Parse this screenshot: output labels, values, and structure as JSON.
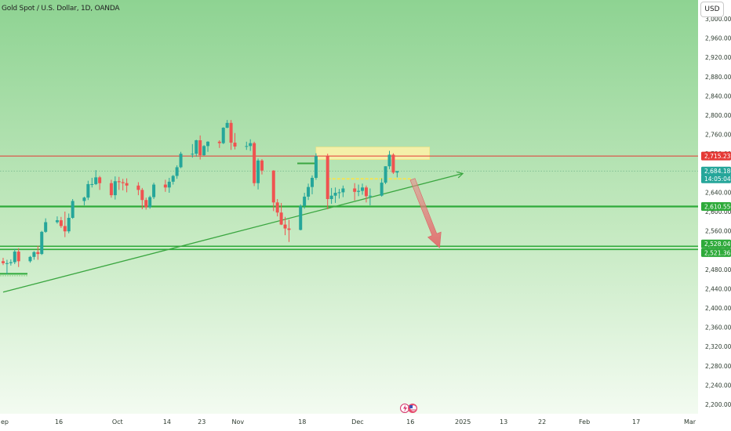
{
  "header": {
    "title": "Gold Spot / U.S. Dollar, 1D, OANDA",
    "currency_button": "USD"
  },
  "colors": {
    "up": "#26a69a",
    "down": "#ef5350",
    "resistance_line": "#e53935",
    "support_line": "#2eaa3a",
    "trendline": "#3aa640",
    "highlight_zone": "#fff2a8",
    "arrow": "#e07070"
  },
  "chart_data": {
    "type": "candlestick",
    "title": "Gold Spot / U.S. Dollar, 1D, OANDA",
    "y_axis": {
      "unit": "USD",
      "range": [
        2180,
        3010
      ],
      "ticks": [
        "3,000.000",
        "2,960.000",
        "2,920.000",
        "2,880.000",
        "2,840.000",
        "2,800.000",
        "2,760.000",
        "2,720.000",
        "2,680.000",
        "2,640.000",
        "2,600.000",
        "2,560.000",
        "2,520.000",
        "2,480.000",
        "2,440.000",
        "2,400.000",
        "2,360.000",
        "2,320.000",
        "2,280.000",
        "2,240.000",
        "2,200.000"
      ]
    },
    "x_axis": {
      "labels": [
        "ep",
        "16",
        "Oct",
        "14",
        "23",
        "Nov",
        "18",
        "Dec",
        "16",
        "2025",
        "13",
        "22",
        "Feb",
        "17",
        "Mar"
      ]
    },
    "price_tags": [
      {
        "label": "2,715.233",
        "value": 2715.233,
        "color": "#e53935"
      },
      {
        "label": "2,684.180",
        "value": 2684.18,
        "color": "#26a69a"
      },
      {
        "label": "14:05:04",
        "value": 2674.5,
        "color": "#26a69a"
      },
      {
        "label": "2,610.550",
        "value": 2610.55,
        "color": "#2eaa3a"
      },
      {
        "label": "2,528.049",
        "value": 2528.049,
        "color": "#2eaa3a"
      },
      {
        "label": "2,521.367",
        "value": 2521.367,
        "color": "#2eaa3a"
      }
    ],
    "horizontal_lines": [
      {
        "name": "resistance",
        "value": 2715.233
      },
      {
        "name": "support",
        "value": 2610.55
      },
      {
        "name": "support-zone-top",
        "value": 2528.049
      },
      {
        "name": "support-zone-bottom",
        "value": 2521.367
      }
    ],
    "trendline": {
      "from": {
        "date": "Sep 02",
        "price": 2433
      },
      "to": {
        "date": "Dec 30",
        "price": 2679
      }
    },
    "highlight_zones": [
      {
        "from_date": "Nov 22",
        "to_date": "Dec 21",
        "low": 2708,
        "high": 2734
      }
    ],
    "forecast_arrow": {
      "from": {
        "date": "Dec 17",
        "price": 2667
      },
      "to": {
        "date": "Dec 24",
        "price": 2525
      }
    },
    "candles": [
      {
        "d": "Sep 02",
        "o": 2497,
        "h": 2504,
        "l": 2489,
        "c": 2493
      },
      {
        "d": "Sep 03",
        "o": 2493,
        "h": 2500,
        "l": 2470,
        "c": 2493
      },
      {
        "d": "Sep 04",
        "o": 2493,
        "h": 2501,
        "l": 2488,
        "c": 2495
      },
      {
        "d": "Sep 05",
        "o": 2495,
        "h": 2523,
        "l": 2491,
        "c": 2517
      },
      {
        "d": "Sep 06",
        "o": 2517,
        "h": 2524,
        "l": 2485,
        "c": 2497
      },
      {
        "d": "Sep 09",
        "o": 2497,
        "h": 2508,
        "l": 2494,
        "c": 2506
      },
      {
        "d": "Sep 10",
        "o": 2506,
        "h": 2518,
        "l": 2500,
        "c": 2516
      },
      {
        "d": "Sep 11",
        "o": 2516,
        "h": 2529,
        "l": 2500,
        "c": 2512
      },
      {
        "d": "Sep 12",
        "o": 2512,
        "h": 2560,
        "l": 2510,
        "c": 2558
      },
      {
        "d": "Sep 13",
        "o": 2558,
        "h": 2586,
        "l": 2556,
        "c": 2578
      },
      {
        "d": "Sep 16",
        "o": 2578,
        "h": 2590,
        "l": 2575,
        "c": 2582
      },
      {
        "d": "Sep 17",
        "o": 2582,
        "h": 2589,
        "l": 2566,
        "c": 2570
      },
      {
        "d": "Sep 18",
        "o": 2570,
        "h": 2600,
        "l": 2547,
        "c": 2559
      },
      {
        "d": "Sep 19",
        "o": 2559,
        "h": 2596,
        "l": 2555,
        "c": 2587
      },
      {
        "d": "Sep 20",
        "o": 2587,
        "h": 2626,
        "l": 2585,
        "c": 2622
      },
      {
        "d": "Sep 23",
        "o": 2622,
        "h": 2631,
        "l": 2613,
        "c": 2629
      },
      {
        "d": "Sep 24",
        "o": 2629,
        "h": 2664,
        "l": 2624,
        "c": 2657
      },
      {
        "d": "Sep 25",
        "o": 2657,
        "h": 2670,
        "l": 2650,
        "c": 2657
      },
      {
        "d": "Sep 26",
        "o": 2657,
        "h": 2686,
        "l": 2655,
        "c": 2671
      },
      {
        "d": "Sep 27",
        "o": 2671,
        "h": 2674,
        "l": 2645,
        "c": 2659
      },
      {
        "d": "Sep 30",
        "o": 2659,
        "h": 2666,
        "l": 2629,
        "c": 2634
      },
      {
        "d": "Oct 01",
        "o": 2634,
        "h": 2673,
        "l": 2625,
        "c": 2663
      },
      {
        "d": "Oct 02",
        "o": 2663,
        "h": 2672,
        "l": 2645,
        "c": 2661
      },
      {
        "d": "Oct 03",
        "o": 2661,
        "h": 2668,
        "l": 2644,
        "c": 2659
      },
      {
        "d": "Oct 04",
        "o": 2659,
        "h": 2669,
        "l": 2640,
        "c": 2654
      },
      {
        "d": "Oct 07",
        "o": 2654,
        "h": 2661,
        "l": 2634,
        "c": 2645
      },
      {
        "d": "Oct 08",
        "o": 2645,
        "h": 2649,
        "l": 2605,
        "c": 2624
      },
      {
        "d": "Oct 09",
        "o": 2624,
        "h": 2629,
        "l": 2604,
        "c": 2609
      },
      {
        "d": "Oct 10",
        "o": 2609,
        "h": 2633,
        "l": 2606,
        "c": 2630
      },
      {
        "d": "Oct 11",
        "o": 2630,
        "h": 2660,
        "l": 2626,
        "c": 2656
      },
      {
        "d": "Oct 14",
        "o": 2656,
        "h": 2666,
        "l": 2641,
        "c": 2650
      },
      {
        "d": "Oct 15",
        "o": 2650,
        "h": 2670,
        "l": 2639,
        "c": 2662
      },
      {
        "d": "Oct 16",
        "o": 2662,
        "h": 2676,
        "l": 2656,
        "c": 2674
      },
      {
        "d": "Oct 17",
        "o": 2674,
        "h": 2696,
        "l": 2668,
        "c": 2692
      },
      {
        "d": "Oct 18",
        "o": 2692,
        "h": 2724,
        "l": 2690,
        "c": 2720
      },
      {
        "d": "Oct 21",
        "o": 2720,
        "h": 2740,
        "l": 2712,
        "c": 2720
      },
      {
        "d": "Oct 22",
        "o": 2720,
        "h": 2749,
        "l": 2714,
        "c": 2748
      },
      {
        "d": "Oct 23",
        "o": 2748,
        "h": 2758,
        "l": 2708,
        "c": 2717
      },
      {
        "d": "Oct 24",
        "o": 2717,
        "h": 2738,
        "l": 2716,
        "c": 2736
      },
      {
        "d": "Oct 25",
        "o": 2736,
        "h": 2746,
        "l": 2724,
        "c": 2745
      },
      {
        "d": "Oct 28",
        "o": 2745,
        "h": 2748,
        "l": 2732,
        "c": 2742
      },
      {
        "d": "Oct 29",
        "o": 2742,
        "h": 2775,
        "l": 2740,
        "c": 2774
      },
      {
        "d": "Oct 30",
        "o": 2774,
        "h": 2790,
        "l": 2773,
        "c": 2784
      },
      {
        "d": "Oct 31",
        "o": 2784,
        "h": 2790,
        "l": 2728,
        "c": 2743
      },
      {
        "d": "Nov 01",
        "o": 2743,
        "h": 2763,
        "l": 2729,
        "c": 2735
      },
      {
        "d": "Nov 04",
        "o": 2735,
        "h": 2745,
        "l": 2728,
        "c": 2736
      },
      {
        "d": "Nov 05",
        "o": 2736,
        "h": 2750,
        "l": 2726,
        "c": 2742
      },
      {
        "d": "Nov 06",
        "o": 2742,
        "h": 2745,
        "l": 2653,
        "c": 2659
      },
      {
        "d": "Nov 07",
        "o": 2659,
        "h": 2710,
        "l": 2646,
        "c": 2706
      },
      {
        "d": "Nov 08",
        "o": 2706,
        "h": 2709,
        "l": 2677,
        "c": 2685
      },
      {
        "d": "Nov 11",
        "o": 2685,
        "h": 2686,
        "l": 2601,
        "c": 2619
      },
      {
        "d": "Nov 12",
        "o": 2619,
        "h": 2626,
        "l": 2590,
        "c": 2598
      },
      {
        "d": "Nov 13",
        "o": 2598,
        "h": 2618,
        "l": 2572,
        "c": 2573
      },
      {
        "d": "Nov 14",
        "o": 2573,
        "h": 2589,
        "l": 2551,
        "c": 2565
      },
      {
        "d": "Nov 15",
        "o": 2565,
        "h": 2583,
        "l": 2537,
        "c": 2562
      },
      {
        "d": "Nov 18",
        "o": 2562,
        "h": 2615,
        "l": 2561,
        "c": 2612
      },
      {
        "d": "Nov 19",
        "o": 2612,
        "h": 2639,
        "l": 2606,
        "c": 2631
      },
      {
        "d": "Nov 20",
        "o": 2631,
        "h": 2658,
        "l": 2624,
        "c": 2651
      },
      {
        "d": "Nov 21",
        "o": 2651,
        "h": 2675,
        "l": 2636,
        "c": 2670
      },
      {
        "d": "Nov 22",
        "o": 2670,
        "h": 2721,
        "l": 2666,
        "c": 2715
      },
      {
        "d": "Nov 25",
        "o": 2715,
        "h": 2720,
        "l": 2605,
        "c": 2626
      },
      {
        "d": "Nov 26",
        "o": 2626,
        "h": 2649,
        "l": 2616,
        "c": 2633
      },
      {
        "d": "Nov 27",
        "o": 2633,
        "h": 2650,
        "l": 2618,
        "c": 2639
      },
      {
        "d": "Nov 28",
        "o": 2639,
        "h": 2647,
        "l": 2627,
        "c": 2640
      },
      {
        "d": "Nov 29",
        "o": 2640,
        "h": 2654,
        "l": 2630,
        "c": 2648
      },
      {
        "d": "Dec 02",
        "o": 2648,
        "h": 2659,
        "l": 2623,
        "c": 2641
      },
      {
        "d": "Dec 03",
        "o": 2641,
        "h": 2656,
        "l": 2632,
        "c": 2643
      },
      {
        "d": "Dec 04",
        "o": 2643,
        "h": 2658,
        "l": 2635,
        "c": 2650
      },
      {
        "d": "Dec 05",
        "o": 2650,
        "h": 2654,
        "l": 2619,
        "c": 2632
      },
      {
        "d": "Dec 06",
        "o": 2632,
        "h": 2648,
        "l": 2613,
        "c": 2633
      },
      {
        "d": "Dec 09",
        "o": 2633,
        "h": 2669,
        "l": 2631,
        "c": 2660
      },
      {
        "d": "Dec 10",
        "o": 2660,
        "h": 2694,
        "l": 2657,
        "c": 2694
      },
      {
        "d": "Dec 11",
        "o": 2694,
        "h": 2726,
        "l": 2688,
        "c": 2718
      },
      {
        "d": "Dec 12",
        "o": 2718,
        "h": 2721,
        "l": 2678,
        "c": 2681
      },
      {
        "d": "Dec 13",
        "o": 2681,
        "h": 2684,
        "l": 2671,
        "c": 2684
      }
    ]
  }
}
